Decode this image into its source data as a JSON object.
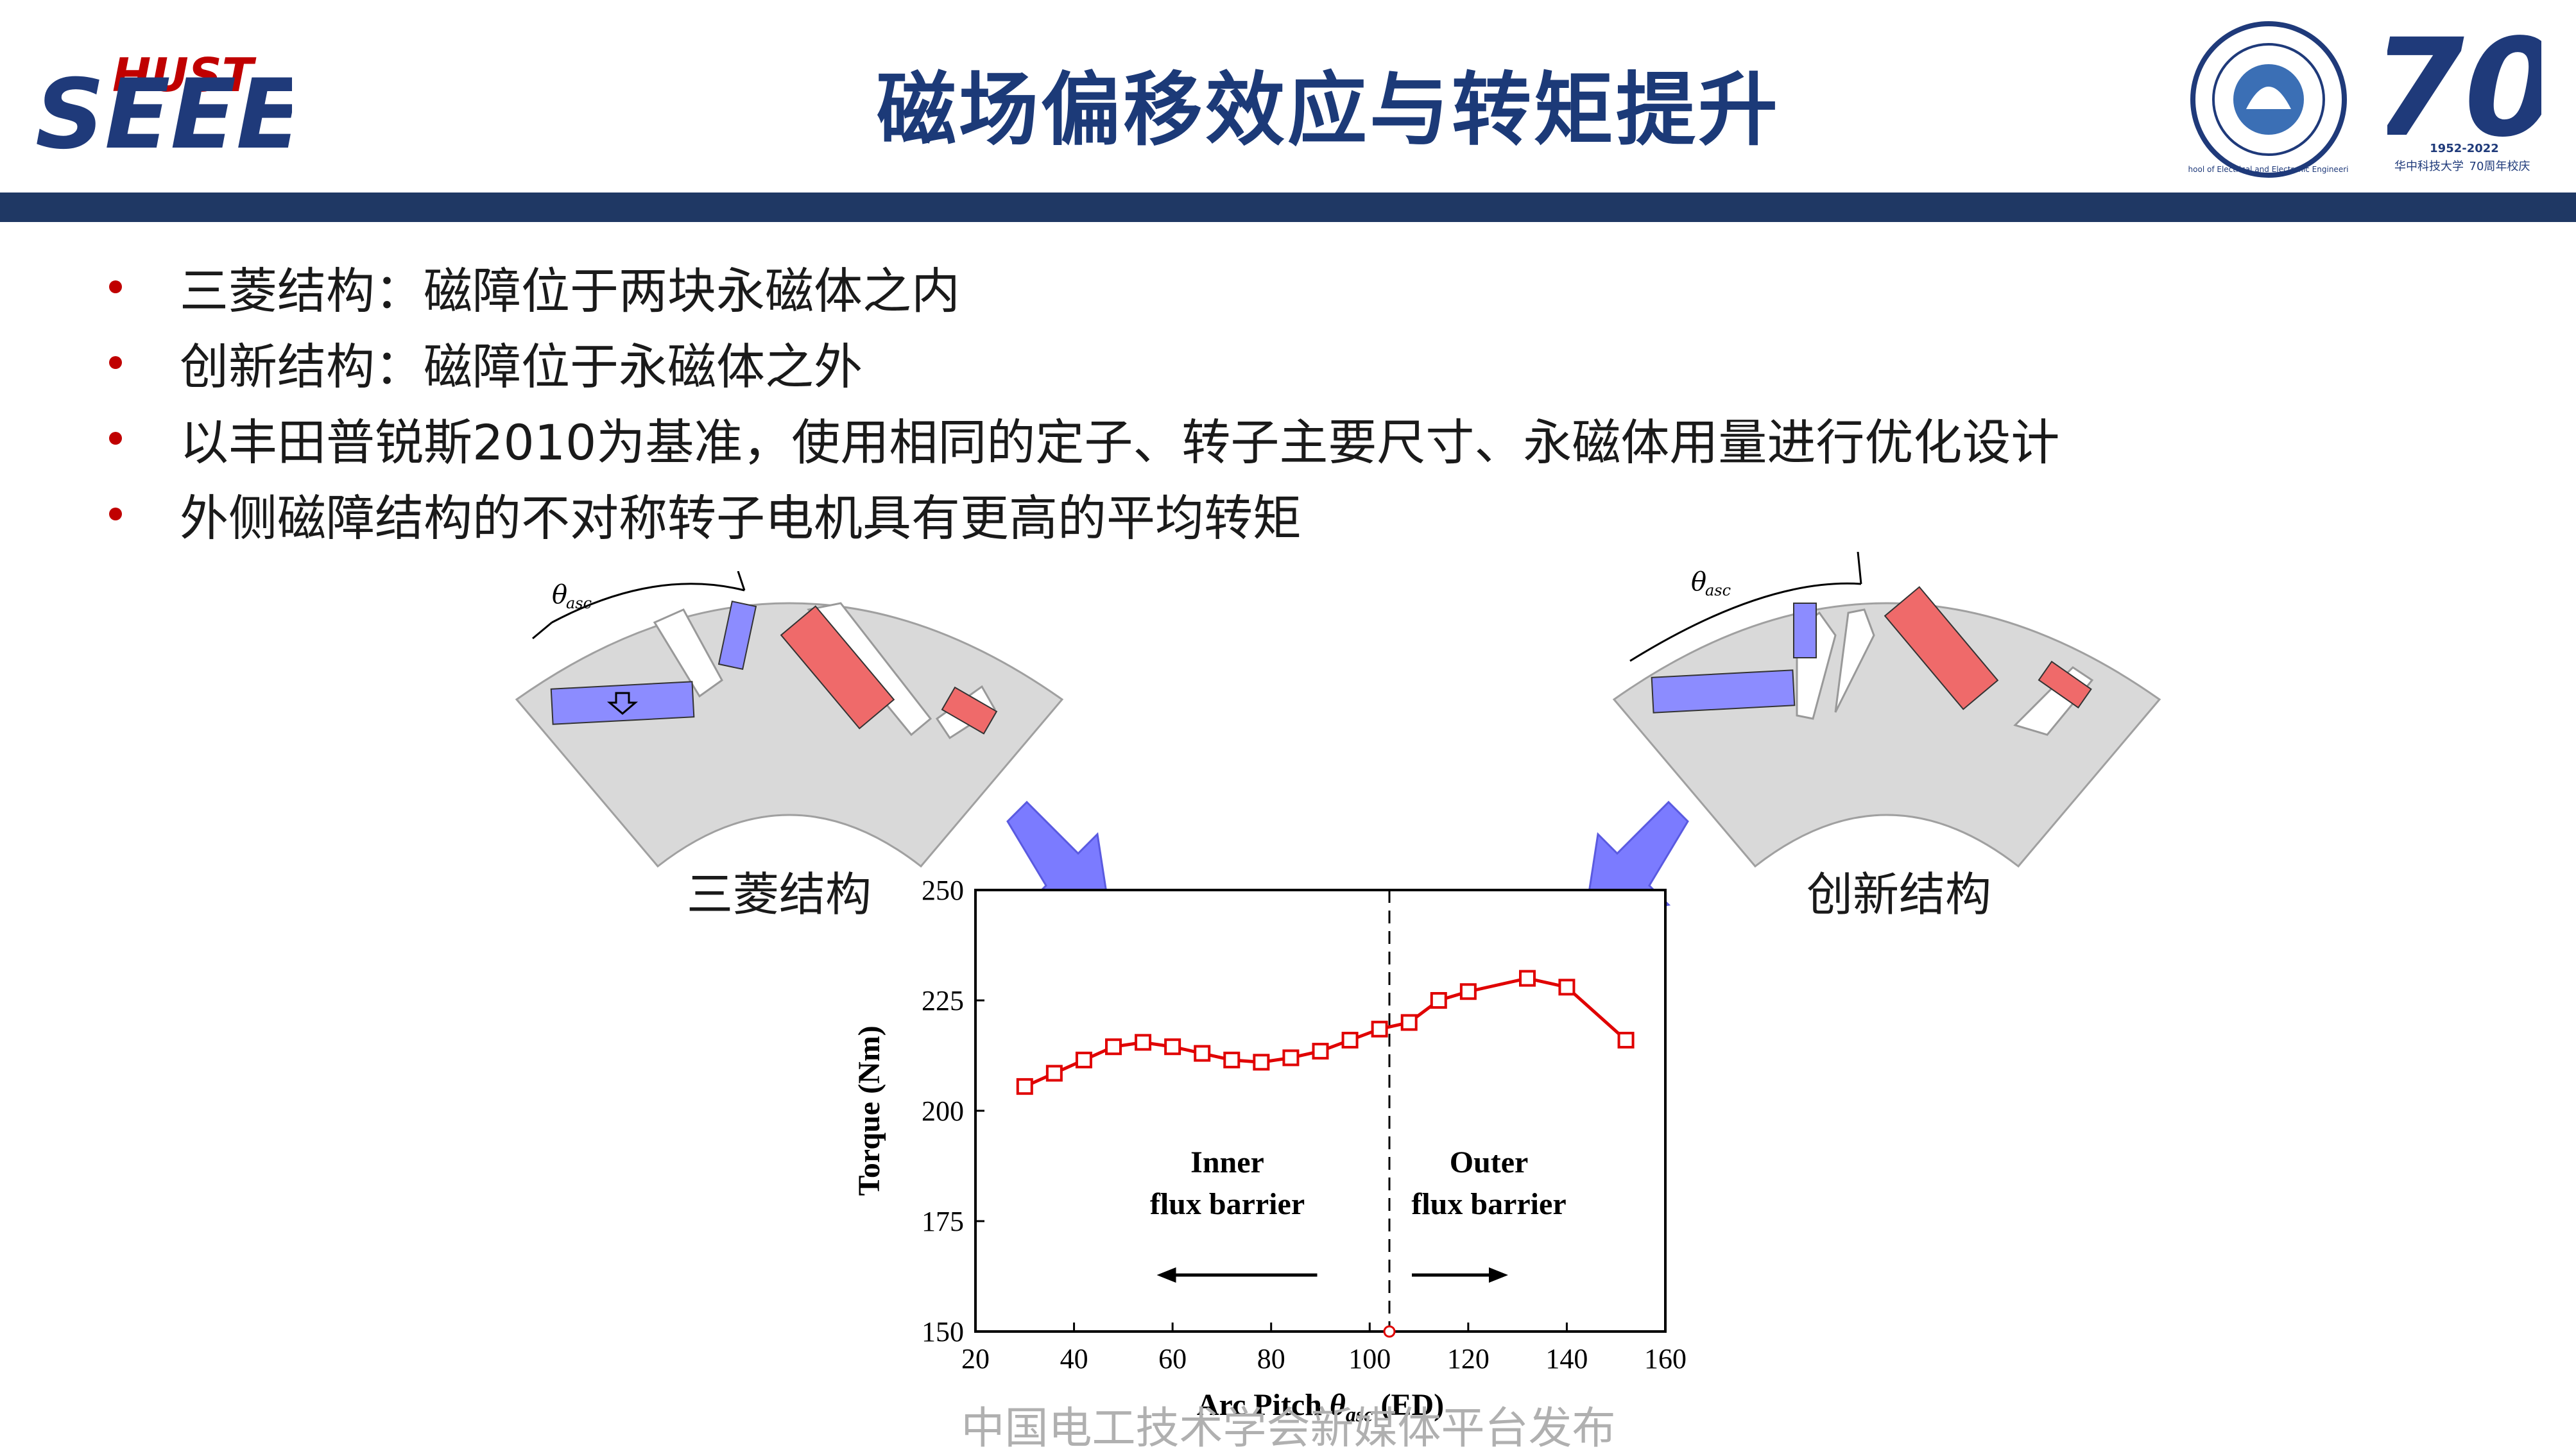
{
  "header": {
    "title": "磁场偏移效应与转矩提升",
    "logo_left": {
      "top": "HUST",
      "bottom": "SEEE"
    },
    "logo_seal": "School of Electrical and Electronic Engineering",
    "logo_70": {
      "number": "70",
      "years": "1952-2022",
      "line1": "华中科技大学",
      "line2": "70周年校庆"
    }
  },
  "bullets": [
    "三菱结构：磁障位于两块永磁体之内",
    "创新结构：磁障位于永磁体之外",
    "以丰田普锐斯2010为基准，使用相同的定子、转子主要尺寸、永磁体用量进行优化设计",
    "外侧磁障结构的不对称转子电机具有更高的平均转矩"
  ],
  "rotor_left": {
    "caption": "三菱结构",
    "angle_label": "θ",
    "angle_sub": "asc"
  },
  "rotor_right": {
    "caption": "创新结构",
    "angle_label": "θ",
    "angle_sub": "asc"
  },
  "colors": {
    "title": "#1c3a78",
    "band": "#1f3864",
    "bullet": "#c00000",
    "series": "#e00000",
    "magnet_blue": "#8c8cff",
    "magnet_red": "#ef6a6a",
    "rotor": "#d9d9d9",
    "arrow": "#7b7bff"
  },
  "chart_data": {
    "type": "line",
    "title": "",
    "xlabel": "Arc Pitch θasc (ED)",
    "xlabel_main": "Arc Pitch ",
    "xlabel_theta": "θ",
    "xlabel_sub": "asc",
    "xlabel_unit": " (ED)",
    "ylabel": "Torque (Nm)",
    "xlim": [
      20,
      160
    ],
    "ylim": [
      150,
      250
    ],
    "xticks": [
      20,
      40,
      60,
      80,
      100,
      120,
      140,
      160
    ],
    "yticks": [
      150,
      175,
      200,
      225,
      250
    ],
    "divider_x": 104,
    "series": [
      {
        "x": [
          30,
          36,
          42,
          48,
          54,
          60,
          66,
          72,
          78,
          84,
          90,
          96,
          102,
          108,
          114,
          120,
          132,
          140,
          152
        ],
        "y": [
          205.5,
          208.5,
          211.5,
          214.5,
          215.5,
          214.5,
          213,
          211.5,
          211,
          212,
          213.5,
          216,
          218.5,
          220,
          225,
          227,
          230,
          228,
          216
        ]
      }
    ],
    "annotations": [
      {
        "line1": "Inner",
        "line2": "flux barrier",
        "arrow": "left"
      },
      {
        "line1": "Outer",
        "line2": "flux barrier",
        "arrow": "right"
      }
    ]
  },
  "watermark": "中国电工技术学会新媒体平台发布"
}
